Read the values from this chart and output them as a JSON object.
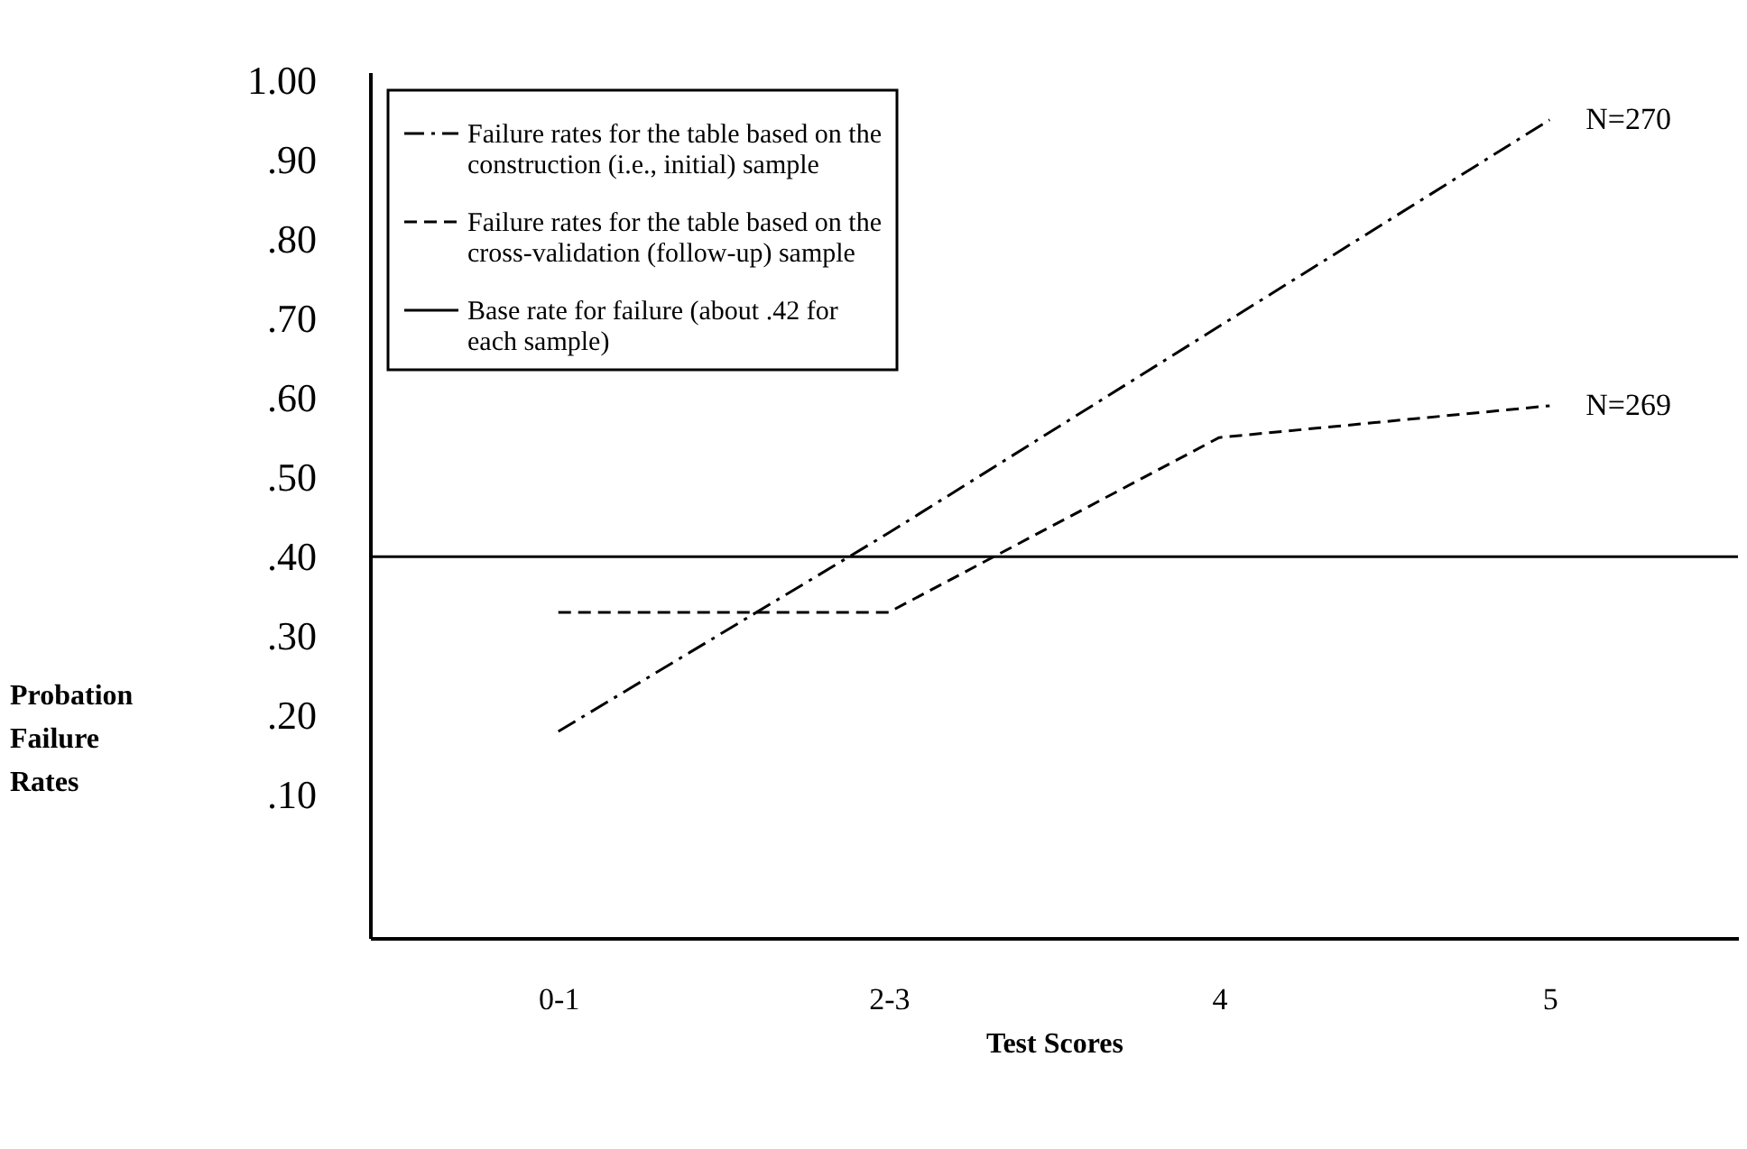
{
  "chart_data": {
    "type": "line",
    "xlabel": "Test Scores",
    "ylabel": "Probation Failure Rates",
    "categories": [
      "0-1",
      "2-3",
      "4",
      "5"
    ],
    "series": [
      {
        "name": "Failure rates for the table based on the construction (i.e., initial) sample",
        "color": "#000000",
        "line_style": "dashdot",
        "values": [
          0.18,
          0.43,
          0.69,
          0.95
        ]
      },
      {
        "name": "Failure rates for the table based on the cross-validation (follow-up) sample",
        "color": "#000000",
        "line_style": "dashed",
        "values": [
          0.33,
          0.33,
          0.55,
          0.59
        ]
      }
    ],
    "ref_lines": [
      {
        "axis": "y",
        "value": 0.4,
        "label": "Base rate for failure (about .42 for each sample)",
        "color": "#000000",
        "line_style": "solid"
      }
    ],
    "annotations": [
      {
        "text": "N=270",
        "x": "5",
        "y": 0.95
      },
      {
        "text": "N=269",
        "x": "5",
        "y": 0.59
      }
    ],
    "ylim": [
      -0.08,
      1.01
    ],
    "yticks": [
      {
        "value": 0.1,
        "label": ".10"
      },
      {
        "value": 0.2,
        "label": ".20"
      },
      {
        "value": 0.3,
        "label": ".30"
      },
      {
        "value": 0.4,
        "label": ".40"
      },
      {
        "value": 0.5,
        "label": ".50"
      },
      {
        "value": 0.6,
        "label": ".60"
      },
      {
        "value": 0.7,
        "label": ".70"
      },
      {
        "value": 0.8,
        "label": ".80"
      },
      {
        "value": 0.9,
        "label": ".90"
      },
      {
        "value": 1,
        "label": "1.00"
      }
    ],
    "grid": false,
    "legend": "top left",
    "marker": "none"
  }
}
